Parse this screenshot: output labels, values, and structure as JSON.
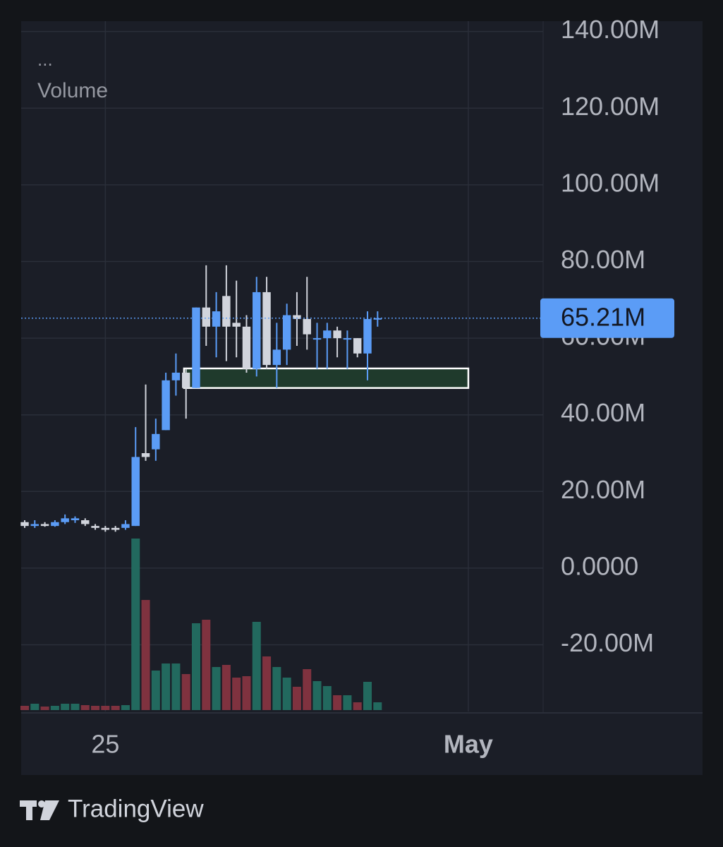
{
  "chart_data": {
    "type": "candlestick",
    "legend_title": "...",
    "volume_label": "Volume",
    "source": "TradingView",
    "categories": [
      null,
      null,
      null,
      null,
      null,
      null,
      null,
      null,
      "25",
      null,
      null,
      null,
      null,
      null,
      null,
      null,
      null,
      null,
      null,
      null,
      null,
      null,
      null,
      null,
      null,
      null,
      null,
      null,
      null,
      null,
      null,
      null,
      null,
      null,
      null,
      null,
      null,
      null,
      null,
      null,
      null,
      null,
      null,
      null,
      "May",
      null,
      null,
      null,
      null,
      null,
      null,
      null
    ],
    "open": [
      12,
      11,
      11.5,
      11,
      12,
      12.5,
      12.5,
      11,
      10.5,
      10.5,
      10.5,
      11,
      30,
      31,
      36,
      49,
      51,
      47,
      68,
      63,
      71,
      64,
      63,
      52,
      72,
      53,
      57,
      66,
      65,
      60,
      60,
      62,
      60,
      60,
      56,
      65,
      null,
      null,
      null,
      null,
      null,
      null,
      null,
      null,
      null,
      null,
      null,
      null,
      null,
      null,
      null,
      null
    ],
    "high": [
      12.5,
      12.5,
      12,
      12.5,
      14,
      13.5,
      13,
      11.5,
      11,
      11,
      12.5,
      36.8,
      47.9,
      39,
      51,
      56,
      52,
      68,
      79,
      72,
      79,
      75,
      66,
      76,
      76,
      64,
      69,
      72,
      76,
      64,
      64,
      63,
      62,
      60,
      67,
      67,
      null,
      null,
      null,
      null,
      null,
      null,
      null,
      null,
      null,
      null,
      null,
      null,
      null,
      null,
      null,
      null
    ],
    "low": [
      10.5,
      10.5,
      10.8,
      10.8,
      11.5,
      11.8,
      11,
      10,
      9.5,
      9.5,
      10,
      11,
      28,
      28,
      36,
      45,
      39,
      47,
      58,
      55,
      54,
      55,
      51,
      50,
      52,
      47,
      53,
      58,
      57,
      52,
      52,
      55,
      52,
      55,
      49,
      63,
      null,
      null,
      null,
      null,
      null,
      null,
      null,
      null,
      null,
      null,
      null,
      null,
      null,
      null,
      null,
      null
    ],
    "close": [
      11,
      11.5,
      11,
      12,
      13,
      13,
      11.5,
      10.5,
      10,
      10,
      11.5,
      29,
      29,
      35,
      49,
      51,
      47,
      68,
      63,
      67,
      63,
      63,
      52,
      72,
      53,
      57,
      66,
      65,
      61,
      60,
      62,
      60,
      60,
      56,
      65,
      65.21,
      null,
      null,
      null,
      null,
      null,
      null,
      null,
      null,
      null,
      null,
      null,
      null,
      null,
      null,
      null,
      null
    ],
    "volume": [
      6,
      9,
      5,
      6,
      9,
      9,
      7,
      6,
      6,
      6,
      7,
      243,
      156,
      56,
      66,
      66,
      51,
      123,
      128,
      61,
      64,
      46,
      48,
      125,
      76,
      61,
      46,
      33,
      58,
      41,
      34,
      21,
      21,
      11,
      40,
      11,
      null,
      null,
      null,
      null,
      null,
      null,
      null,
      null,
      null,
      null,
      null,
      null,
      null,
      null,
      null,
      null
    ],
    "up_color": "#5b9cf6",
    "down_color": "#d1d4dc",
    "volume_up_color": "#22695e",
    "volume_down_color": "#7f323f",
    "ylim": [
      -37.4,
      142.7
    ],
    "yticks": [
      {
        "value": 140,
        "label": "140.00M"
      },
      {
        "value": 120,
        "label": "120.00M"
      },
      {
        "value": 100,
        "label": "100.00M"
      },
      {
        "value": 80,
        "label": "80.00M"
      },
      {
        "value": 60,
        "label": "60.00M"
      },
      {
        "value": 40,
        "label": "40.00M"
      },
      {
        "value": 20,
        "label": "20.00M"
      },
      {
        "value": 0,
        "label": "0.0000"
      },
      {
        "value": -20,
        "label": "-20.00M"
      }
    ],
    "last_price": {
      "value": 65.21,
      "label": "65.21M"
    },
    "zone": {
      "low": 47,
      "high": 52.1,
      "start": 15.8,
      "end": 44
    },
    "grid": true
  }
}
